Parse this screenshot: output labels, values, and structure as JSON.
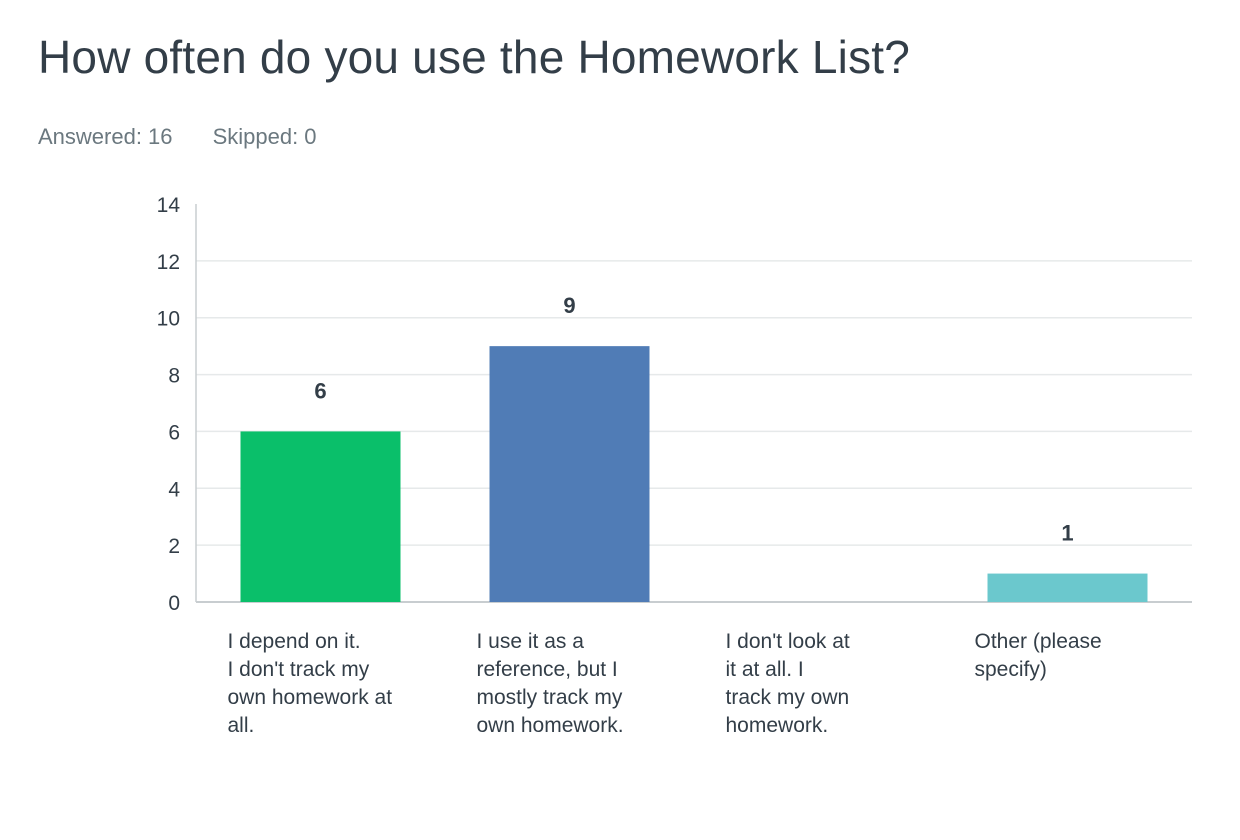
{
  "header": {
    "title": "How often do you use the Homework List?",
    "answered_label": "Answered:",
    "answered_value": "16",
    "skipped_label": "Skipped:",
    "skipped_value": "0"
  },
  "colors": {
    "grid": "#e6e9ea",
    "axis": "#c8cdd0",
    "text": "#333e48"
  },
  "chart_data": {
    "type": "bar",
    "title": "How often do you use the Homework List?",
    "xlabel": "",
    "ylabel": "",
    "ylim": [
      0,
      14
    ],
    "yticks": [
      0,
      2,
      4,
      6,
      8,
      10,
      12,
      14
    ],
    "grid": true,
    "legend": "none",
    "categories": [
      [
        "I depend on it.",
        "I don't track my",
        "own homework at",
        "all."
      ],
      [
        "I use it as a",
        "reference, but I",
        "mostly track my",
        "own homework."
      ],
      [
        "I don't look at",
        "it at all. I",
        "track my own",
        "homework."
      ],
      [
        "Other (please",
        "specify)"
      ]
    ],
    "values": [
      6,
      9,
      0,
      1
    ],
    "value_labels": [
      "6",
      "9",
      "",
      "1"
    ],
    "bar_colors": [
      "#0abf6a",
      "#507cb6",
      "#f6b031",
      "#6bc8cd"
    ]
  }
}
